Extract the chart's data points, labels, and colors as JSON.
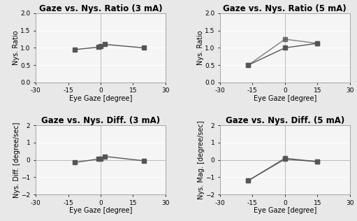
{
  "subplot1": {
    "title": "Gaze vs. Nys. Ratio (3 mA)",
    "xlabel": "Eye Gaze [degree]",
    "ylabel": "Nys. Ratio",
    "xlim": [
      -30,
      30
    ],
    "ylim": [
      0.0,
      2.0
    ],
    "yticks": [
      0.0,
      0.5,
      1.0,
      1.5,
      2.0
    ],
    "xticks": [
      -30,
      -15,
      0,
      15,
      30
    ],
    "xticklabels": [
      "-30",
      "-15",
      "0",
      "15",
      "30"
    ],
    "line1": {
      "x": [
        -12,
        -1,
        0,
        2,
        20
      ],
      "y": [
        0.95,
        1.02,
        1.04,
        1.1,
        1.0
      ]
    }
  },
  "subplot2": {
    "title": "Gaze vs. Nys. Ratio (5 mA)",
    "xlabel": "Eye Gaze [degree]",
    "ylabel": "Nys. Ratio",
    "xlim": [
      -30,
      30
    ],
    "ylim": [
      0.0,
      2.0
    ],
    "yticks": [
      0.0,
      0.5,
      1.0,
      1.5,
      2.0
    ],
    "xticks": [
      -30,
      -15,
      0,
      15,
      30
    ],
    "xticklabels": [
      "-30",
      "-15",
      "0",
      "15",
      "30"
    ],
    "line1": {
      "x": [
        -17,
        0,
        15
      ],
      "y": [
        0.5,
        1.0,
        1.13
      ]
    },
    "line2": {
      "x": [
        -17,
        0,
        15
      ],
      "y": [
        0.5,
        1.25,
        1.13
      ]
    }
  },
  "subplot3": {
    "title": "Gaze vs. Nys. Diff. (3 mA)",
    "xlabel": "Eye Gaze [degree]",
    "ylabel": "Nys. Diff. [degree/sec]",
    "xlim": [
      -30,
      30
    ],
    "ylim": [
      -2,
      2
    ],
    "yticks": [
      -2,
      -1,
      0,
      1,
      2
    ],
    "xticks": [
      -30,
      -15,
      0,
      15,
      30
    ],
    "xticklabels": [
      "-30",
      "-15",
      "0",
      "15",
      "30"
    ],
    "line1": {
      "x": [
        -12,
        -1,
        0,
        2,
        20
      ],
      "y": [
        -0.15,
        0.05,
        0.07,
        0.2,
        -0.05
      ]
    }
  },
  "subplot4": {
    "title": "Gaze vs. Nys. Diff. (5 mA)",
    "xlabel": "Eye Gaze [degree]",
    "ylabel": "Nys. Mag. [degree/sec]",
    "xlim": [
      -30,
      30
    ],
    "ylim": [
      -2,
      2
    ],
    "yticks": [
      -2,
      -1,
      0,
      1,
      2
    ],
    "xticks": [
      -30,
      -15,
      0,
      15,
      30
    ],
    "xticklabels": [
      "-30",
      "-15",
      "0",
      "15",
      "30"
    ],
    "line1": {
      "x": [
        -17,
        0,
        15
      ],
      "y": [
        -1.2,
        0.05,
        -0.1
      ]
    },
    "line2": {
      "x": [
        -17,
        0,
        15
      ],
      "y": [
        -1.2,
        0.1,
        -0.1
      ]
    }
  },
  "line_color": "#555555",
  "marker": "s",
  "marker_size": 4,
  "bg_color": "#e8e8e8",
  "face_color": "#f5f5f5",
  "grid_color": "#ffffff",
  "font_size_title": 8.5,
  "font_size_label": 7,
  "font_size_tick": 6.5
}
